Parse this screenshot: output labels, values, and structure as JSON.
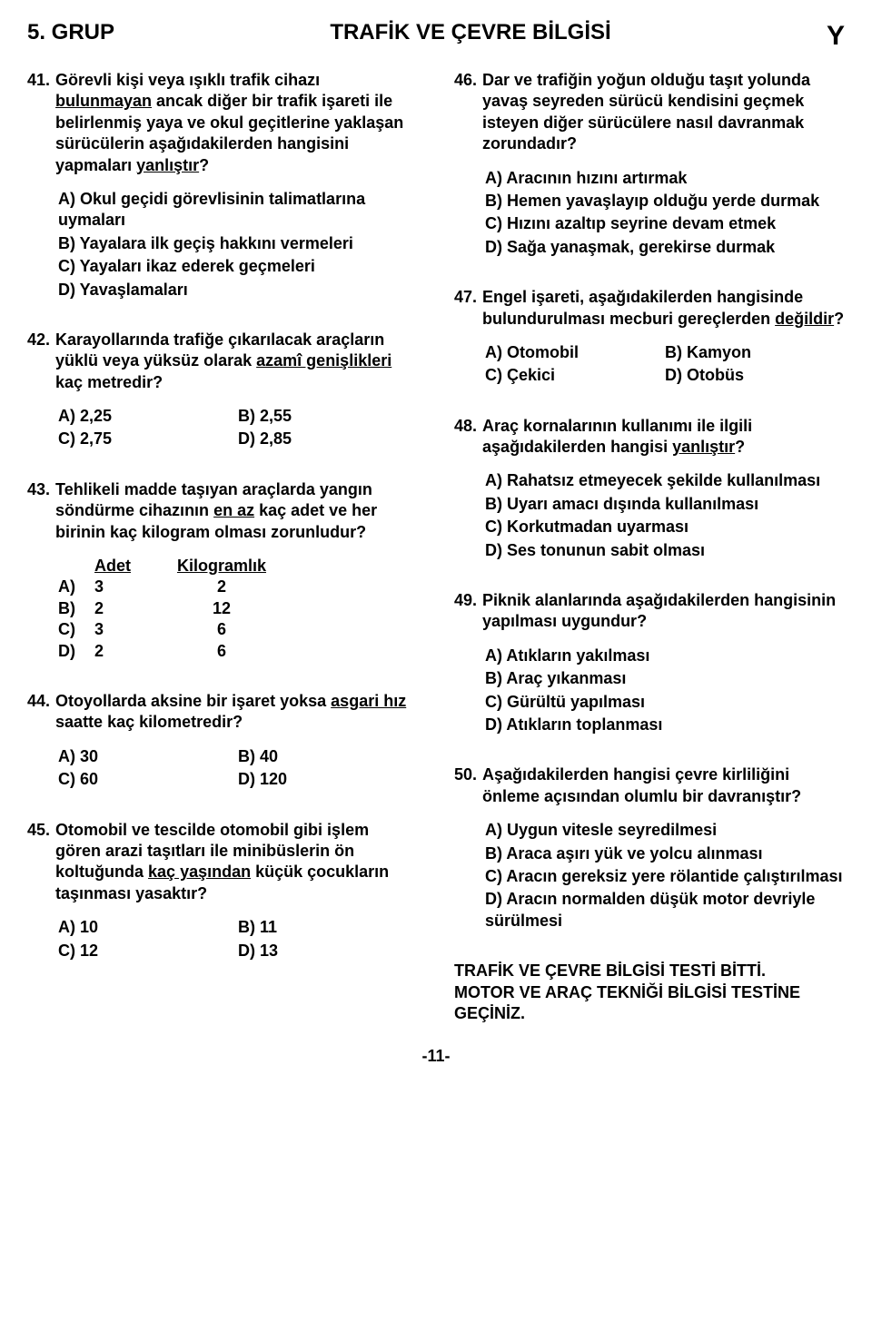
{
  "header": {
    "left": "5. GRUP",
    "center": "TRAFİK VE ÇEVRE BİLGİSİ",
    "right": "Y"
  },
  "left_col": {
    "q41": {
      "num": "41.",
      "text_pre": "Görevli kişi veya ışıklı trafik cihazı ",
      "text_u": "bulunmayan",
      "text_post": " ancak diğer bir trafik işareti ile belirlenmiş yaya ve okul geçitlerine yaklaşan sürücülerin aşağıdakilerden hangisini yapmaları ",
      "text_u2": "yanlıştır",
      "text_end": "?",
      "opts": [
        "A) Okul geçidi görevlisinin talimatlarına uymaları",
        "B) Yayalara ilk geçiş hakkını vermeleri",
        "C) Yayaları ikaz ederek geçmeleri",
        "D) Yavaşlamaları"
      ]
    },
    "q42": {
      "num": "42.",
      "text_pre": "Karayollarında trafiğe çıkarılacak araçların yüklü veya yüksüz olarak ",
      "text_u": "azamî genişlikleri",
      "text_post": " kaç metredir?",
      "opts": [
        "A) 2,25",
        "B) 2,55",
        "C) 2,75",
        "D) 2,85"
      ]
    },
    "q43": {
      "num": "43.",
      "text_pre": "Tehlikeli madde taşıyan araçlarda yangın söndürme cihazının ",
      "text_u": "en az",
      "text_post": " kaç adet ve her birinin kaç kilogram olması zorunludur?",
      "tbl": {
        "head": [
          "",
          "Adet",
          "Kilogramlık"
        ],
        "rows": [
          [
            "A)",
            "3",
            "2"
          ],
          [
            "B)",
            "2",
            "12"
          ],
          [
            "C)",
            "3",
            "6"
          ],
          [
            "D)",
            "2",
            "6"
          ]
        ]
      }
    },
    "q44": {
      "num": "44.",
      "text_pre": "Otoyollarda aksine bir işaret yoksa ",
      "text_u": "asgari hız",
      "text_post": " saatte kaç kilometredir?",
      "opts": [
        "A) 30",
        "B) 40",
        "C) 60",
        "D) 120"
      ]
    },
    "q45": {
      "num": "45.",
      "text_pre": "Otomobil ve tescilde otomobil gibi işlem gören arazi taşıtları ile minibüslerin ön koltuğunda ",
      "text_u": "kaç yaşından",
      "text_post": " küçük çocukların taşınması yasaktır?",
      "opts": [
        "A) 10",
        "B) 11",
        "C) 12",
        "D) 13"
      ]
    }
  },
  "right_col": {
    "q46": {
      "num": "46.",
      "text": "Dar ve trafiğin yoğun olduğu taşıt yolunda yavaş seyreden sürücü kendisini geçmek isteyen diğer sürücülere nasıl davranmak zorundadır?",
      "opts": [
        "A) Aracının hızını artırmak",
        "B) Hemen yavaşlayıp olduğu yerde durmak",
        "C) Hızını azaltıp seyrine devam etmek",
        "D) Sağa yanaşmak, gerekirse durmak"
      ]
    },
    "q47": {
      "num": "47.",
      "text_pre": "Engel işareti, aşağıdakilerden hangisinde bulundurulması mecburi gereçlerden ",
      "text_u": "değildir",
      "text_post": "?",
      "opts": [
        "A) Otomobil",
        "B) Kamyon",
        "C) Çekici",
        "D) Otobüs"
      ]
    },
    "q48": {
      "num": "48.",
      "text_pre": "Araç kornalarının kullanımı ile ilgili aşağıdakilerden hangisi ",
      "text_u": "yanlıştır",
      "text_post": "?",
      "opts": [
        "A) Rahatsız etmeyecek şekilde kullanılması",
        "B) Uyarı amacı dışında kullanılması",
        "C) Korkutmadan uyarması",
        "D) Ses tonunun sabit olması"
      ]
    },
    "q49": {
      "num": "49.",
      "text": "Piknik alanlarında aşağıdakilerden hangisinin yapılması uygundur?",
      "opts": [
        "A) Atıkların yakılması",
        "B) Araç yıkanması",
        "C) Gürültü yapılması",
        "D) Atıkların toplanması"
      ]
    },
    "q50": {
      "num": "50.",
      "text": "Aşağıdakilerden hangisi çevre kirliliğini önleme açısından olumlu bir davranıştır?",
      "opts": [
        "A) Uygun vitesle seyredilmesi",
        "B) Araca aşırı yük ve yolcu alınması",
        "C) Aracın gereksiz yere rölantide çalıştırılması",
        "D) Aracın normalden düşük motor devriyle sürülmesi"
      ]
    }
  },
  "footer": {
    "line1": "TRAFİK VE ÇEVRE BİLGİSİ TESTİ BİTTİ.",
    "line2": "MOTOR VE ARAÇ TEKNİĞİ BİLGİSİ TESTİNE GEÇİNİZ."
  },
  "pagenum": "-11-"
}
